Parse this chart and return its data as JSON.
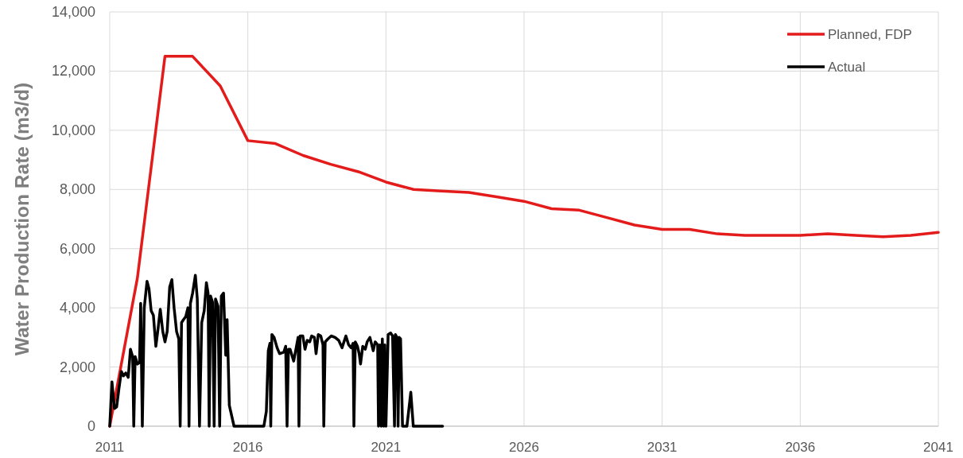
{
  "chart_data": {
    "type": "line",
    "ylabel": "Water Production Rate (m3/d)",
    "xlim": [
      2011,
      2041
    ],
    "xticks": [
      2011,
      2016,
      2021,
      2026,
      2031,
      2036,
      2041
    ],
    "ylim": [
      0,
      14000
    ],
    "yticks": [
      0,
      {
        "value": 2000,
        "label": "2,000"
      },
      {
        "value": 4000,
        "label": "4,000"
      },
      {
        "value": 6000,
        "label": "6,000"
      },
      {
        "value": 8000,
        "label": "8,000"
      },
      {
        "value": 10000,
        "label": "10,000"
      },
      {
        "value": 12000,
        "label": "12,000"
      },
      {
        "value": 14000,
        "label": "14,000"
      }
    ],
    "grid": true,
    "legend": "top right",
    "series": [
      {
        "name": "Planned, FDP",
        "color": "#e41b1b",
        "x": [
          2011,
          2012,
          2013,
          2014,
          2015,
          2016,
          2017,
          2018,
          2019,
          2020,
          2021,
          2022,
          2023,
          2024,
          2025,
          2026,
          2027,
          2028,
          2029,
          2030,
          2031,
          2032,
          2033,
          2034,
          2035,
          2036,
          2037,
          2038,
          2039,
          2040,
          2041
        ],
        "values": [
          0,
          5000,
          12500,
          12500,
          11500,
          9650,
          9550,
          9150,
          8850,
          8600,
          8250,
          8000,
          7950,
          7900,
          7750,
          7600,
          7350,
          7300,
          7050,
          6800,
          6650,
          6650,
          6500,
          6450,
          6450,
          6450,
          6500,
          6450,
          6400,
          6450,
          6550
        ]
      },
      {
        "name": "Actual",
        "color": "#000000",
        "x": [
          2011.0,
          2011.08,
          2011.17,
          2011.25,
          2011.33,
          2011.42,
          2011.5,
          2011.58,
          2011.67,
          2011.75,
          2011.83,
          2011.87,
          2011.92,
          2012.0,
          2012.08,
          2012.12,
          2012.18,
          2012.25,
          2012.35,
          2012.42,
          2012.5,
          2012.58,
          2012.67,
          2012.75,
          2012.83,
          2012.92,
          2013.0,
          2013.08,
          2013.17,
          2013.25,
          2013.33,
          2013.42,
          2013.5,
          2013.55,
          2013.6,
          2013.67,
          2013.75,
          2013.83,
          2013.87,
          2013.92,
          2014.0,
          2014.1,
          2014.17,
          2014.25,
          2014.33,
          2014.42,
          2014.5,
          2014.56,
          2014.6,
          2014.65,
          2014.72,
          2014.78,
          2014.83,
          2014.92,
          2014.98,
          2015.04,
          2015.12,
          2015.2,
          2015.25,
          2015.33,
          2015.5,
          2016.58,
          2016.67,
          2016.74,
          2016.8,
          2016.83,
          2016.87,
          2016.95,
          2017.06,
          2017.15,
          2017.3,
          2017.37,
          2017.42,
          2017.47,
          2017.53,
          2017.66,
          2017.76,
          2017.82,
          2017.85,
          2017.89,
          2017.99,
          2018.07,
          2018.15,
          2018.24,
          2018.31,
          2018.41,
          2018.47,
          2018.55,
          2018.64,
          2018.72,
          2018.75,
          2018.8,
          2018.9,
          2019.02,
          2019.16,
          2019.29,
          2019.41,
          2019.55,
          2019.65,
          2019.74,
          2019.81,
          2019.84,
          2019.89,
          2019.97,
          2020.03,
          2020.08,
          2020.16,
          2020.25,
          2020.32,
          2020.42,
          2020.54,
          2020.61,
          2020.7,
          2020.73,
          2020.78,
          2020.83,
          2020.87,
          2020.92,
          2020.96,
          2021.0,
          2021.08,
          2021.17,
          2021.24,
          2021.31,
          2021.34,
          2021.4,
          2021.44,
          2021.48,
          2021.53,
          2021.6,
          2021.76,
          2021.9,
          2021.99,
          2023.05
        ],
        "values": [
          0,
          1500,
          600,
          650,
          1250,
          1850,
          1700,
          1800,
          1650,
          2600,
          2350,
          0,
          2350,
          2100,
          2150,
          4150,
          0,
          4000,
          4900,
          4650,
          3900,
          3750,
          2700,
          3300,
          3950,
          3200,
          2850,
          3200,
          4700,
          4950,
          4000,
          3200,
          2950,
          0,
          3500,
          3600,
          3700,
          4000,
          0,
          4150,
          4500,
          5100,
          4300,
          0,
          3500,
          3900,
          4850,
          4500,
          0,
          4400,
          4200,
          0,
          4300,
          4050,
          0,
          4400,
          4500,
          2400,
          3600,
          700,
          0,
          0,
          500,
          2550,
          2800,
          0,
          3100,
          3000,
          2650,
          2450,
          2500,
          2700,
          0,
          2600,
          2600,
          2200,
          2700,
          3000,
          0,
          3050,
          3050,
          2600,
          2900,
          2850,
          3050,
          3000,
          2450,
          3100,
          3050,
          2750,
          0,
          2850,
          2950,
          3050,
          3000,
          2900,
          2650,
          3050,
          2750,
          2650,
          2800,
          0,
          2850,
          2700,
          2450,
          2100,
          2700,
          2600,
          2850,
          3000,
          2550,
          2850,
          2750,
          0,
          2750,
          0,
          2950,
          0,
          2750,
          0,
          3100,
          3150,
          3050,
          0,
          3100,
          3000,
          0,
          3000,
          2950,
          0,
          0,
          1150,
          0,
          0
        ]
      }
    ]
  }
}
